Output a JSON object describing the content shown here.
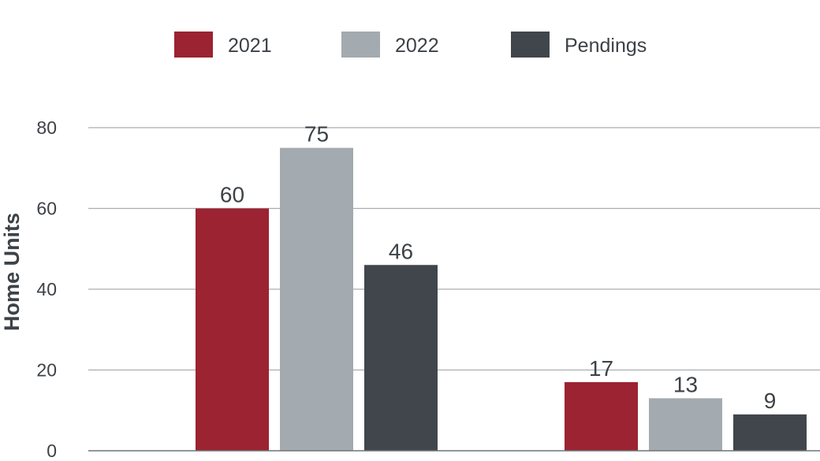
{
  "chart_data": {
    "type": "bar",
    "categories": [
      "",
      ""
    ],
    "series": [
      {
        "name": "2021",
        "values": [
          60,
          17
        ],
        "color": "#9c2331"
      },
      {
        "name": "2022",
        "values": [
          75,
          13
        ],
        "color": "#a3aab0"
      },
      {
        "name": "Pendings",
        "values": [
          46,
          9
        ],
        "color": "#41464c"
      }
    ],
    "ylabel": "Home Units",
    "xlabel": "",
    "ylim": [
      0,
      80
    ],
    "yticks": [
      0,
      20,
      40,
      60,
      80
    ],
    "grid": true,
    "legend_position": "top-center"
  }
}
